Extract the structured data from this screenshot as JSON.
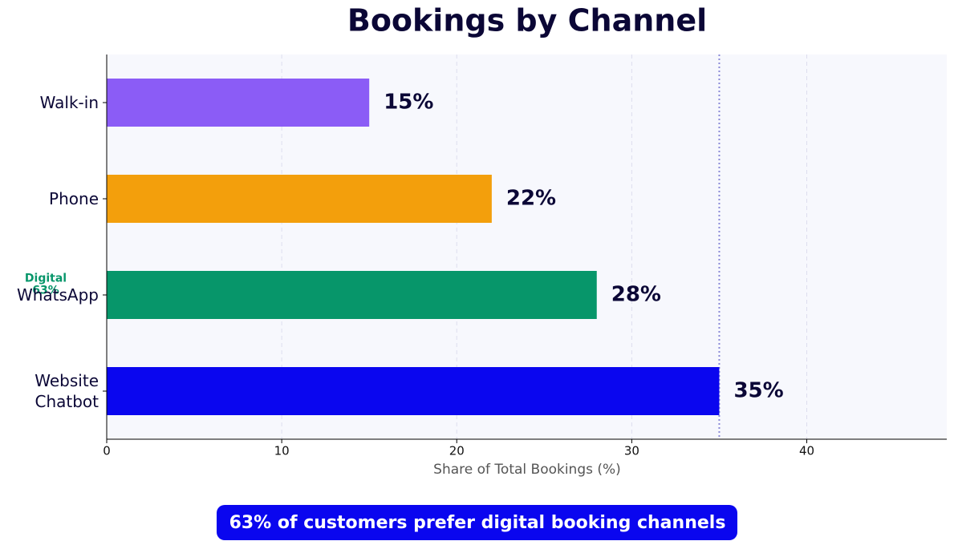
{
  "chart_data": {
    "type": "barh",
    "title": "Bookings by Channel",
    "categories": [
      "Website\nChatbot",
      "WhatsApp",
      "Phone",
      "Walk-in"
    ],
    "values": [
      35,
      28,
      22,
      15
    ],
    "value_labels": [
      "35%",
      "28%",
      "22%",
      "15%"
    ],
    "colors": [
      "#0a06ef",
      "#07966a",
      "#f39f0c",
      "#8b5cf6"
    ],
    "xlim": [
      0,
      48
    ],
    "xticks": [
      0,
      10,
      20,
      30,
      40
    ],
    "xlabel": "Share of Total Bookings (%)",
    "grid": true,
    "reference_x": 35,
    "side_annotation": "Digital\n63%",
    "callout": "63% of customers prefer digital booking channels"
  }
}
